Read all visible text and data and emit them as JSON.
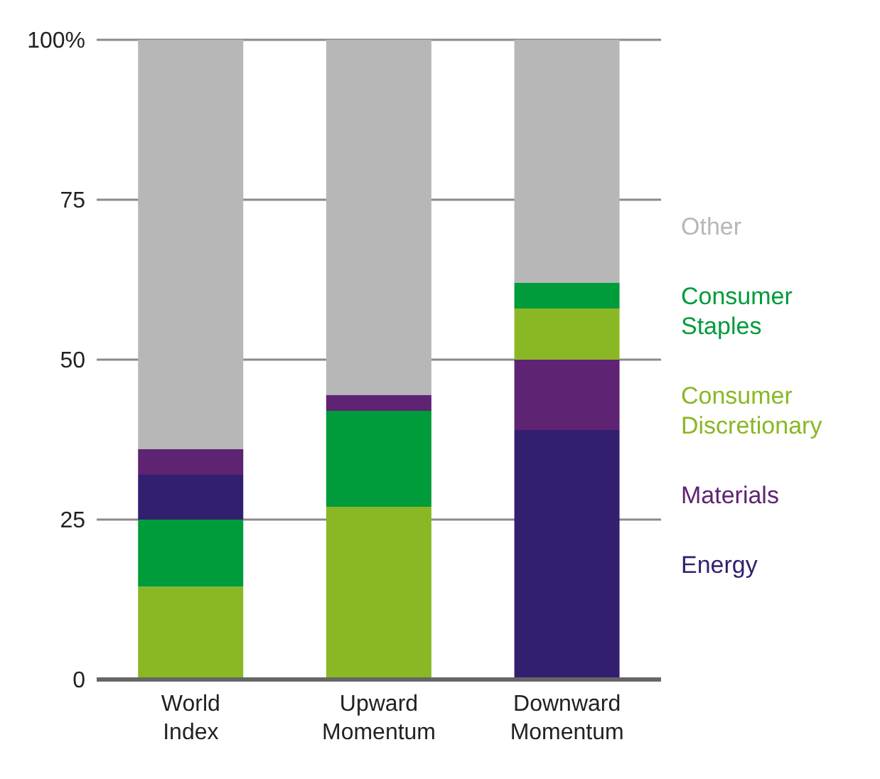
{
  "chart_data": {
    "type": "bar",
    "categories": [
      "World Index",
      "Upward Momentum",
      "Downward Momentum"
    ],
    "series": [
      {
        "name": "Energy",
        "color": "#331f70",
        "values": [
          7,
          null,
          39
        ],
        "base": [
          25,
          null,
          0
        ]
      },
      {
        "name": "Materials",
        "color": "#5f2373",
        "values": [
          4,
          2.5,
          11
        ],
        "base": [
          32,
          42,
          39
        ]
      },
      {
        "name": "Consumer Discretionary",
        "color": "#8ab825",
        "values": [
          14.5,
          27,
          8
        ],
        "base": [
          0,
          0,
          50
        ]
      },
      {
        "name": "Consumer Staples",
        "color": "#009b3a",
        "values": [
          10.5,
          15,
          4
        ],
        "base": [
          14.5,
          27,
          58
        ]
      },
      {
        "name": "Other",
        "color": "#b7b7b7",
        "values": [
          64,
          55.5,
          38
        ],
        "base": [
          36,
          44.5,
          62
        ]
      }
    ],
    "ylim": [
      0,
      100
    ],
    "yticks": [
      0,
      25,
      50,
      75,
      {
        "value": 100,
        "label": "100%"
      }
    ],
    "grid": "y",
    "legend": "right"
  }
}
